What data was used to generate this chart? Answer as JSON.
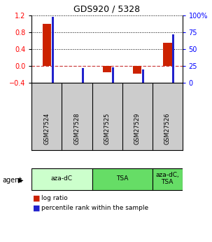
{
  "title": "GDS920 / 5328",
  "samples": [
    "GSM27524",
    "GSM27528",
    "GSM27525",
    "GSM27529",
    "GSM27526"
  ],
  "log_ratios": [
    1.0,
    0.0,
    -0.15,
    -0.18,
    0.55
  ],
  "percentile_ranks": [
    98,
    22,
    23,
    20,
    72
  ],
  "agent_groups": [
    {
      "label": "aza-dC",
      "start": 0,
      "end": 1,
      "color": "#ccffcc"
    },
    {
      "label": "TSA",
      "start": 2,
      "end": 3,
      "color": "#66dd66"
    },
    {
      "label": "aza-dC,\nTSA",
      "start": 4,
      "end": 4,
      "color": "#66dd66"
    }
  ],
  "left_ylim": [
    -0.4,
    1.2
  ],
  "right_ylim": [
    0,
    100
  ],
  "left_yticks": [
    -0.4,
    0.0,
    0.4,
    0.8,
    1.2
  ],
  "right_yticks": [
    0,
    25,
    50,
    75,
    100
  ],
  "right_yticklabels": [
    "0",
    "25",
    "50",
    "75",
    "100%"
  ],
  "bar_color_red": "#cc2200",
  "bar_color_blue": "#2222cc",
  "background_color": "#ffffff",
  "zero_line_color": "#cc4444",
  "sample_box_color": "#cccccc",
  "red_bar_width": 0.3,
  "blue_bar_width": 0.08
}
